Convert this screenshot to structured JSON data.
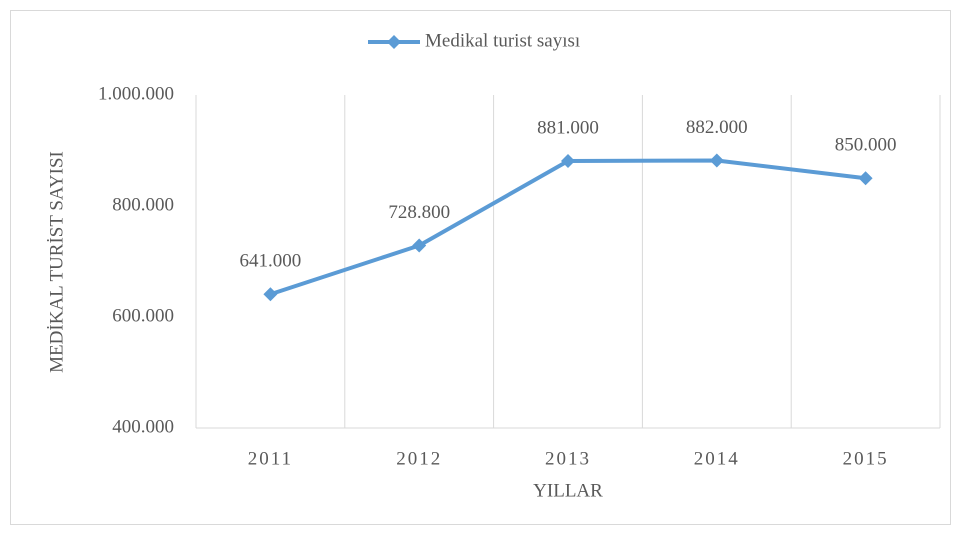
{
  "chart_data": {
    "type": "line",
    "legend": "top",
    "categories": [
      "2011",
      "2012",
      "2013",
      "2014",
      "2015"
    ],
    "series": [
      {
        "name": "Medikal turist sayısı",
        "color": "#5b9bd5",
        "values": [
          641000,
          728800,
          881000,
          882000,
          850000
        ],
        "value_labels": [
          "641.000",
          "728.800",
          "881.000",
          "882.000",
          "850.000"
        ]
      }
    ],
    "ylim": [
      400000,
      1000000
    ],
    "yticks": [
      {
        "value": 400000,
        "label": "400.000"
      },
      {
        "value": 600000,
        "label": "600.000"
      },
      {
        "value": 800000,
        "label": "800.000"
      },
      {
        "value": 1000000,
        "label": "1.000.000"
      }
    ],
    "xgrid": true,
    "xlabel": "YILLAR",
    "ylabel": "MEDİKAL TURİST SAYISI"
  }
}
